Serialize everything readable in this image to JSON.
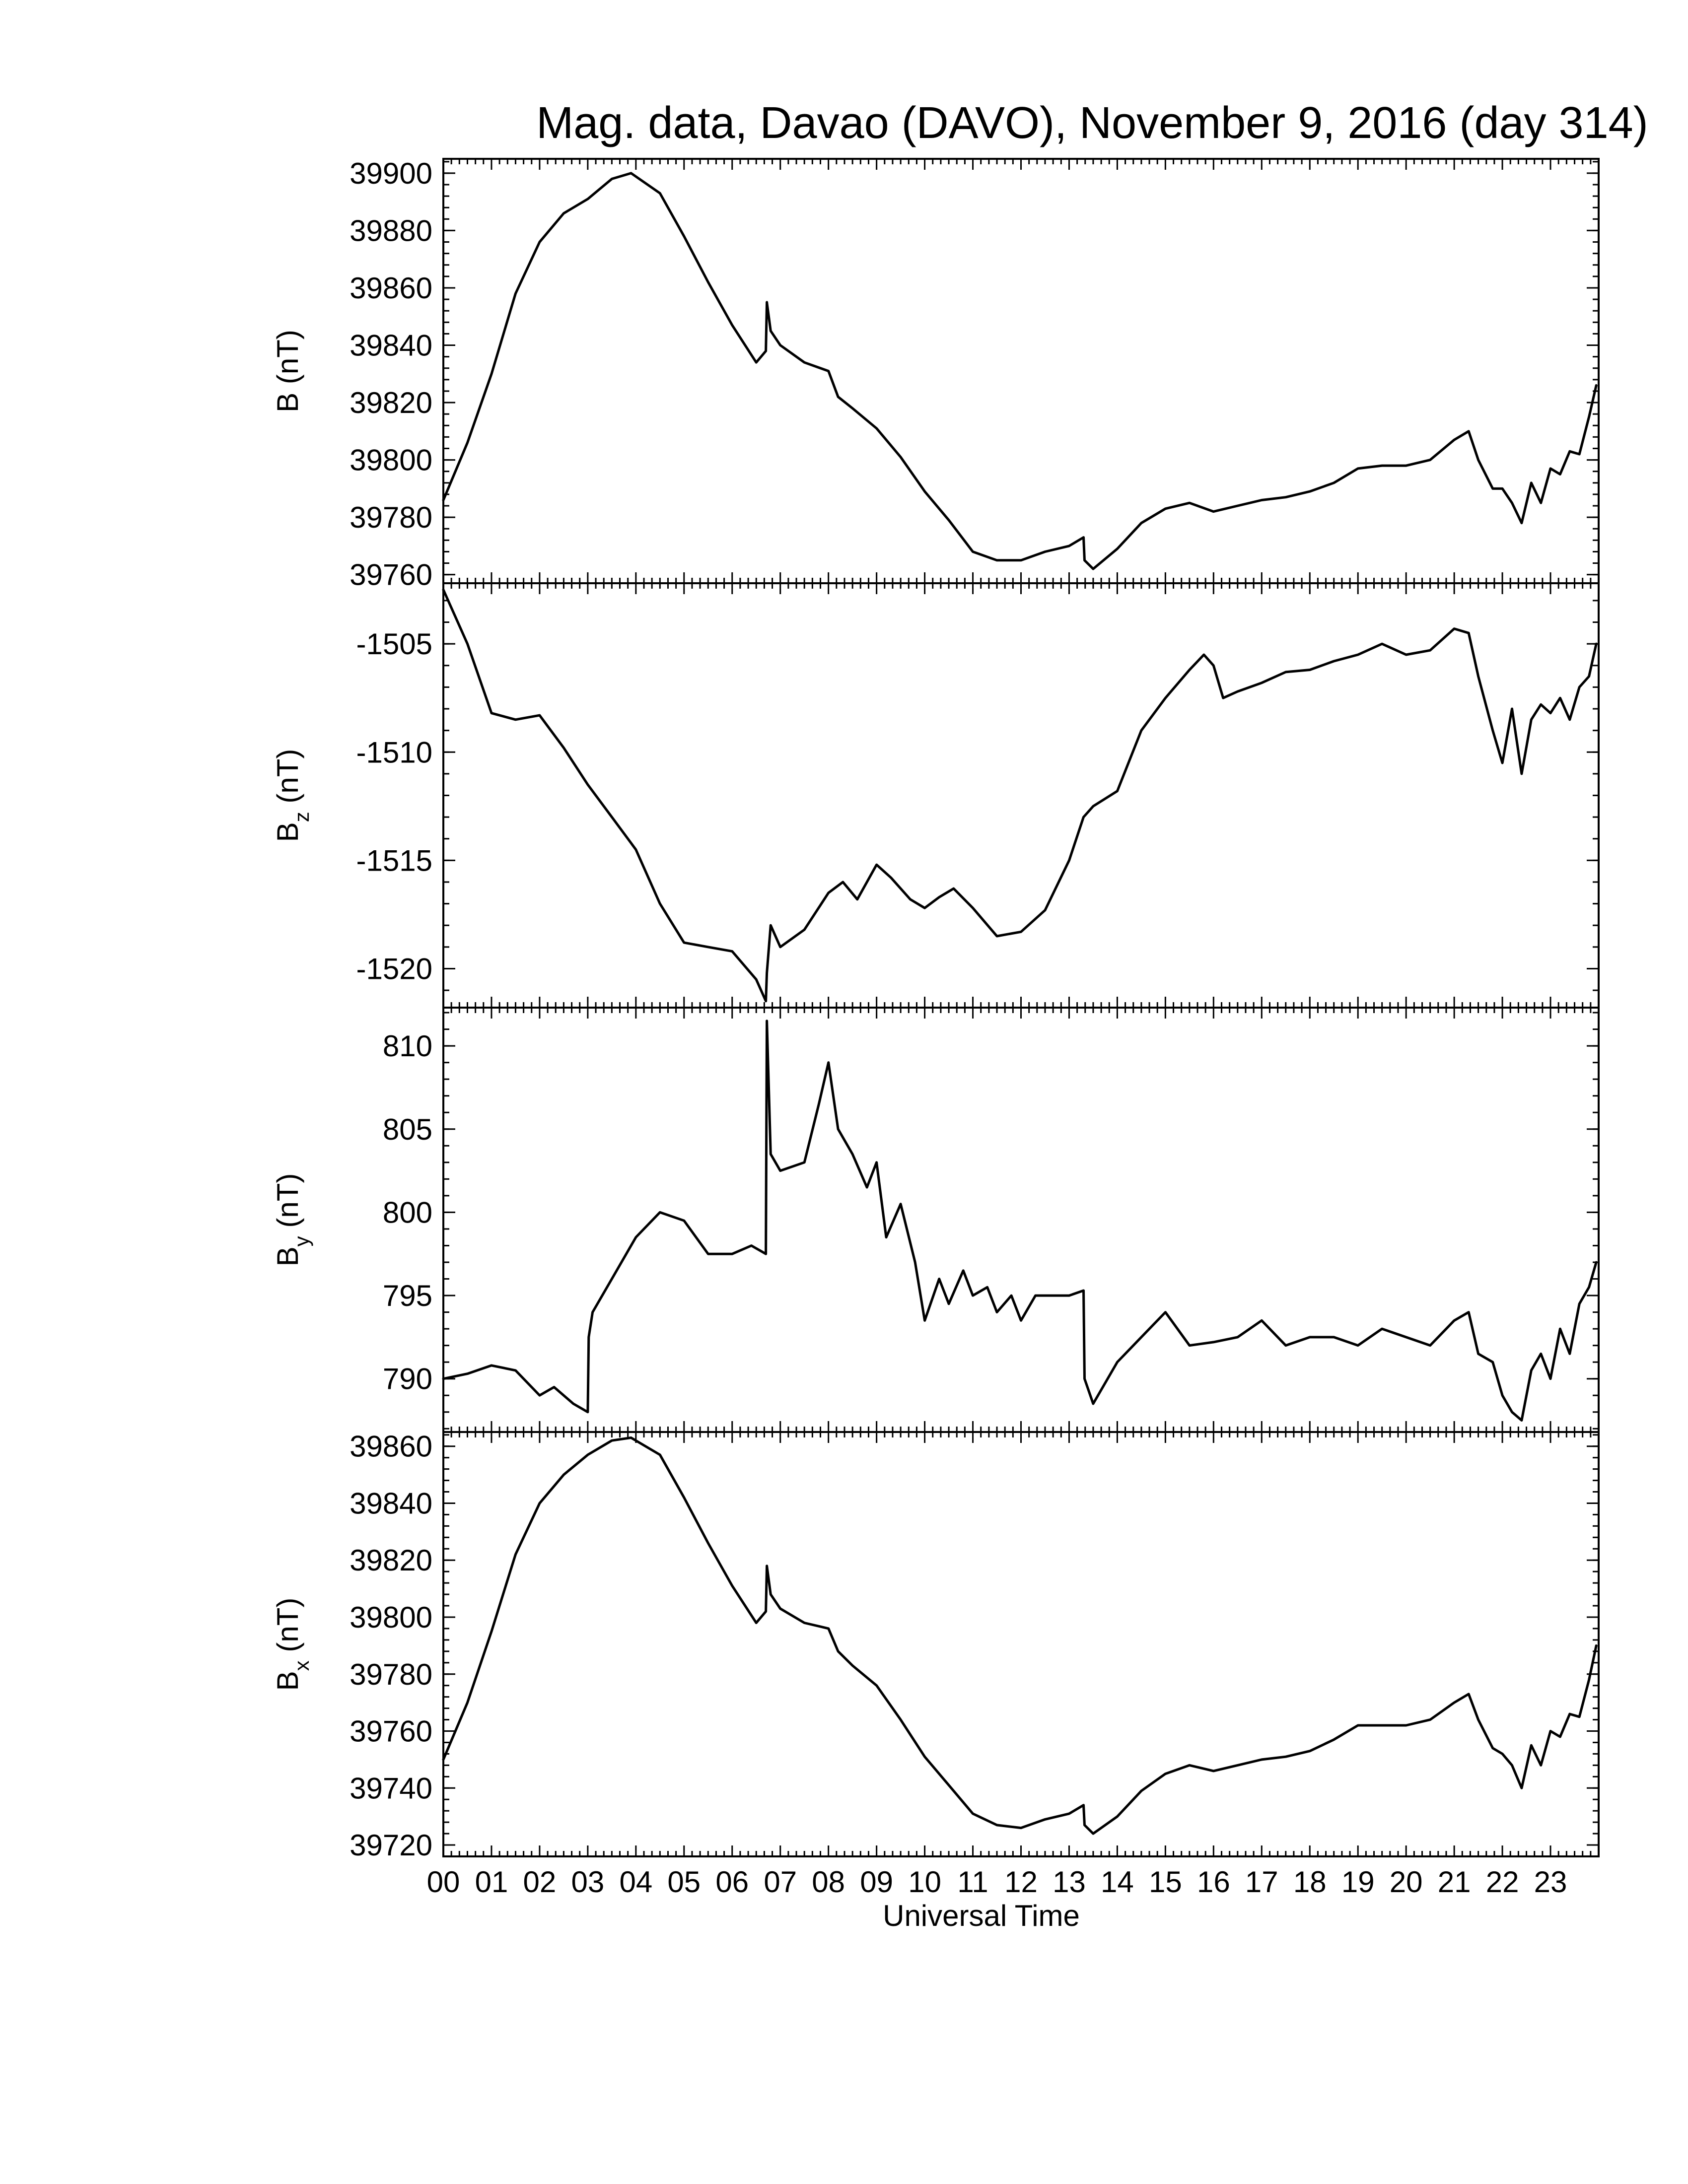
{
  "title": "Mag. data, Davao (DAVO), November 9, 2016 (day 314)",
  "chart_data": [
    {
      "type": "line",
      "panel": "B",
      "ylabel": "B (nT)",
      "ylabel_main": "B",
      "ylabel_sub": "",
      "ylabel_unit": " (nT)",
      "ylim": [
        39757,
        39905
      ],
      "yticks": [
        39760,
        39780,
        39800,
        39820,
        39840,
        39860,
        39880,
        39900
      ],
      "x": [
        0.0,
        0.5,
        1.0,
        1.5,
        2.0,
        2.5,
        3.0,
        3.5,
        3.9,
        4.5,
        5.0,
        5.5,
        6.0,
        6.5,
        6.7,
        6.72,
        6.8,
        7.0,
        7.5,
        8.0,
        8.2,
        8.5,
        9.0,
        9.5,
        10.0,
        10.5,
        11.0,
        11.5,
        12.0,
        12.5,
        13.0,
        13.3,
        13.32,
        13.5,
        14.0,
        14.5,
        15.0,
        15.5,
        16.0,
        16.5,
        17.0,
        17.5,
        18.0,
        18.5,
        19.0,
        19.5,
        20.0,
        20.5,
        21.0,
        21.3,
        21.5,
        21.8,
        22.0,
        22.2,
        22.4,
        22.6,
        22.8,
        23.0,
        23.2,
        23.4,
        23.6,
        23.8,
        23.95
      ],
      "values": [
        39786,
        39806,
        39830,
        39858,
        39876,
        39886,
        39891,
        39898,
        39900,
        39893,
        39878,
        39862,
        39847,
        39834,
        39838,
        39855,
        39845,
        39840,
        39834,
        39831,
        39822,
        39818,
        39811,
        39801,
        39789,
        39779,
        39768,
        39765,
        39765,
        39768,
        39770,
        39773,
        39765,
        39762,
        39769,
        39778,
        39783,
        39785,
        39782,
        39784,
        39786,
        39787,
        39789,
        39792,
        39797,
        39798,
        39798,
        39800,
        39807,
        39810,
        39800,
        39790,
        39790,
        39785,
        39778,
        39792,
        39785,
        39797,
        39795,
        39803,
        39802,
        39815,
        39826
      ]
    },
    {
      "type": "line",
      "panel": "Bz",
      "ylabel": "Bz (nT)",
      "ylabel_main": "B",
      "ylabel_sub": "z",
      "ylabel_unit": " (nT)",
      "ylim": [
        -1521.8,
        -1502.2
      ],
      "yticks": [
        -1520,
        -1515,
        -1510,
        -1505
      ],
      "x": [
        0.0,
        0.5,
        1.0,
        1.5,
        2.0,
        2.5,
        3.0,
        3.5,
        4.0,
        4.5,
        5.0,
        5.5,
        6.0,
        6.5,
        6.7,
        6.72,
        6.8,
        7.0,
        7.5,
        8.0,
        8.3,
        8.6,
        9.0,
        9.3,
        9.7,
        10.0,
        10.3,
        10.6,
        11.0,
        11.5,
        12.0,
        12.5,
        13.0,
        13.3,
        13.5,
        14.0,
        14.5,
        15.0,
        15.5,
        15.8,
        16.0,
        16.2,
        16.5,
        17.0,
        17.5,
        18.0,
        18.5,
        19.0,
        19.5,
        20.0,
        20.5,
        21.0,
        21.3,
        21.5,
        21.8,
        22.0,
        22.2,
        22.4,
        22.6,
        22.8,
        23.0,
        23.2,
        23.4,
        23.6,
        23.8,
        23.95
      ],
      "values": [
        -1502.5,
        -1505.0,
        -1508.2,
        -1508.5,
        -1508.3,
        -1509.8,
        -1511.5,
        -1513.0,
        -1514.5,
        -1517.0,
        -1518.8,
        -1519.0,
        -1519.2,
        -1520.5,
        -1521.5,
        -1520.2,
        -1518.0,
        -1519.0,
        -1518.2,
        -1516.5,
        -1516.0,
        -1516.8,
        -1515.2,
        -1515.8,
        -1516.8,
        -1517.2,
        -1516.7,
        -1516.3,
        -1517.2,
        -1518.5,
        -1518.3,
        -1517.3,
        -1515.0,
        -1513.0,
        -1512.5,
        -1511.8,
        -1509.0,
        -1507.5,
        -1506.2,
        -1505.5,
        -1506.0,
        -1507.5,
        -1507.2,
        -1506.8,
        -1506.3,
        -1506.2,
        -1505.8,
        -1505.5,
        -1505.0,
        -1505.5,
        -1505.3,
        -1504.3,
        -1504.5,
        -1506.5,
        -1509.0,
        -1510.5,
        -1508.0,
        -1511.0,
        -1508.5,
        -1507.8,
        -1508.2,
        -1507.5,
        -1508.5,
        -1507.0,
        -1506.5,
        -1505.0
      ]
    },
    {
      "type": "line",
      "panel": "By",
      "ylabel": "By (nT)",
      "ylabel_main": "B",
      "ylabel_sub": "y",
      "ylabel_unit": " (nT)",
      "ylim": [
        786.8,
        812.3
      ],
      "yticks": [
        790,
        795,
        800,
        805,
        810
      ],
      "x": [
        0.0,
        0.5,
        1.0,
        1.5,
        2.0,
        2.3,
        2.7,
        3.0,
        3.02,
        3.1,
        3.5,
        4.0,
        4.5,
        5.0,
        5.5,
        6.0,
        6.4,
        6.7,
        6.72,
        6.8,
        7.0,
        7.5,
        7.8,
        8.0,
        8.2,
        8.5,
        8.8,
        9.0,
        9.2,
        9.5,
        9.8,
        10.0,
        10.3,
        10.5,
        10.8,
        11.0,
        11.3,
        11.5,
        11.8,
        12.0,
        12.3,
        12.6,
        13.0,
        13.3,
        13.32,
        13.5,
        14.0,
        14.5,
        15.0,
        15.5,
        16.0,
        16.5,
        17.0,
        17.5,
        18.0,
        18.5,
        19.0,
        19.5,
        20.0,
        20.5,
        21.0,
        21.3,
        21.5,
        21.8,
        22.0,
        22.2,
        22.4,
        22.6,
        22.8,
        23.0,
        23.2,
        23.4,
        23.6,
        23.8,
        23.95
      ],
      "values": [
        790.0,
        790.3,
        790.8,
        790.5,
        789.0,
        789.5,
        788.5,
        788.0,
        792.5,
        794.0,
        796.0,
        798.5,
        800.0,
        799.5,
        797.5,
        797.5,
        798.0,
        797.5,
        811.5,
        803.5,
        802.5,
        803.0,
        806.5,
        809.0,
        805.0,
        803.5,
        801.5,
        803.0,
        798.5,
        800.5,
        797.0,
        793.5,
        796.0,
        794.5,
        796.5,
        795.0,
        795.5,
        794.0,
        795.0,
        793.5,
        795.0,
        795.0,
        795.0,
        795.3,
        790.0,
        788.5,
        791.0,
        792.5,
        794.0,
        792.0,
        792.2,
        792.5,
        793.5,
        792.0,
        792.5,
        792.5,
        792.0,
        793.0,
        792.5,
        792.0,
        793.5,
        794.0,
        791.5,
        791.0,
        789.0,
        788.0,
        787.5,
        790.5,
        791.5,
        790.0,
        793.0,
        791.5,
        794.5,
        795.5,
        797.0
      ]
    },
    {
      "type": "line",
      "panel": "Bx",
      "ylabel": "Bx (nT)",
      "ylabel_main": "B",
      "ylabel_sub": "x",
      "ylabel_unit": " (nT)",
      "ylim": [
        39716,
        39865
      ],
      "yticks": [
        39720,
        39740,
        39760,
        39780,
        39800,
        39820,
        39840,
        39860
      ],
      "x": [
        0.0,
        0.5,
        1.0,
        1.5,
        2.0,
        2.5,
        3.0,
        3.5,
        3.9,
        4.5,
        5.0,
        5.5,
        6.0,
        6.5,
        6.7,
        6.72,
        6.8,
        7.0,
        7.5,
        8.0,
        8.2,
        8.5,
        9.0,
        9.5,
        10.0,
        10.5,
        11.0,
        11.5,
        12.0,
        12.5,
        13.0,
        13.3,
        13.32,
        13.5,
        14.0,
        14.5,
        15.0,
        15.5,
        16.0,
        16.5,
        17.0,
        17.5,
        18.0,
        18.5,
        19.0,
        19.5,
        20.0,
        20.5,
        21.0,
        21.3,
        21.5,
        21.8,
        22.0,
        22.2,
        22.4,
        22.6,
        22.8,
        23.0,
        23.2,
        23.4,
        23.6,
        23.8,
        23.95
      ],
      "values": [
        39750,
        39770,
        39795,
        39822,
        39840,
        39850,
        39857,
        39862,
        39863,
        39857,
        39842,
        39826,
        39811,
        39798,
        39802,
        39818,
        39808,
        39803,
        39798,
        39796,
        39788,
        39783,
        39776,
        39764,
        39751,
        39741,
        39731,
        39727,
        39726,
        39729,
        39731,
        39734,
        39727,
        39724,
        39730,
        39739,
        39745,
        39748,
        39746,
        39748,
        39750,
        39751,
        39753,
        39757,
        39762,
        39762,
        39762,
        39764,
        39770,
        39773,
        39764,
        39754,
        39752,
        39748,
        39740,
        39755,
        39748,
        39760,
        39758,
        39766,
        39765,
        39778,
        39790
      ]
    }
  ],
  "xaxis": {
    "label": "Universal Time",
    "xlim": [
      0,
      24
    ],
    "tick_labels": [
      "00",
      "01",
      "02",
      "03",
      "04",
      "05",
      "06",
      "07",
      "08",
      "09",
      "10",
      "11",
      "12",
      "13",
      "14",
      "15",
      "16",
      "17",
      "18",
      "19",
      "20",
      "21",
      "22",
      "23"
    ]
  }
}
